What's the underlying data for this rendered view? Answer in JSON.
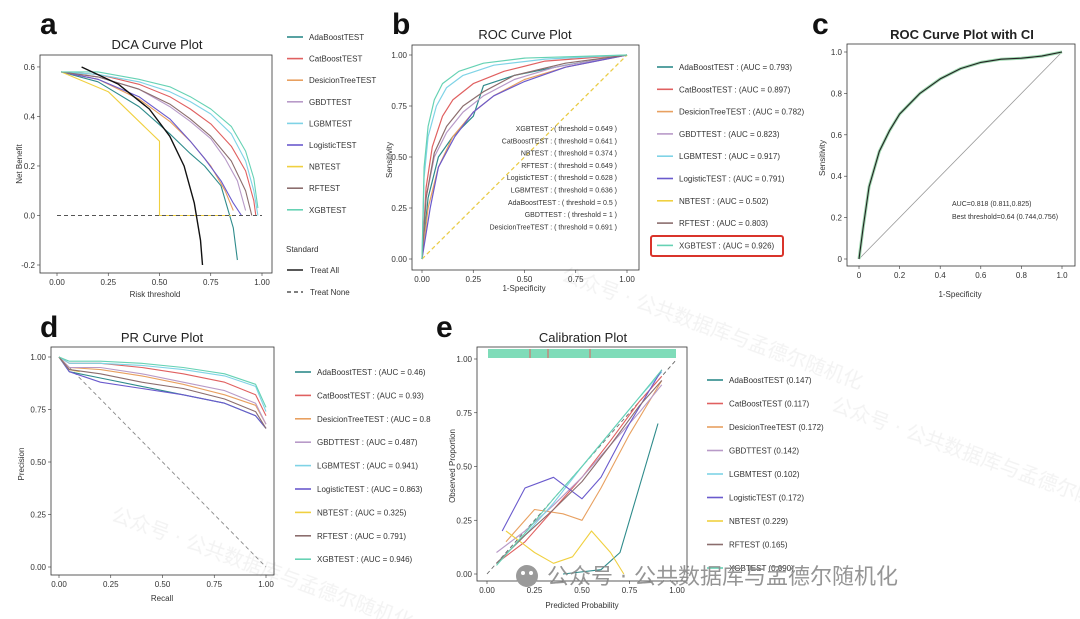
{
  "watermark": "公众号 · 公共数据库与孟德尔随机化",
  "chart_data": [
    {
      "panel": "a",
      "type": "line",
      "title": "DCA Curve Plot",
      "xlabel": "Risk threshold",
      "ylabel": "Net Benefit",
      "xlim": [
        0,
        1
      ],
      "ylim": [
        -0.2,
        0.62
      ],
      "xticks": [
        "0.00",
        "0.25",
        "0.50",
        "0.75",
        "1.00"
      ],
      "yticks": [
        "-0.2",
        "0.0",
        "0.2",
        "0.4",
        "0.6"
      ],
      "legend_title": "Standard",
      "series": [
        {
          "name": "AdaBoostTEST",
          "color": "#2e8b8b",
          "points": [
            [
              0.02,
              0.58
            ],
            [
              0.2,
              0.54
            ],
            [
              0.4,
              0.44
            ],
            [
              0.55,
              0.33
            ],
            [
              0.65,
              0.25
            ],
            [
              0.72,
              0.2
            ],
            [
              0.8,
              0.12
            ],
            [
              0.86,
              -0.05
            ],
            [
              0.88,
              -0.18
            ]
          ]
        },
        {
          "name": "CatBoostTEST",
          "color": "#e06060",
          "points": [
            [
              0.02,
              0.58
            ],
            [
              0.2,
              0.57
            ],
            [
              0.4,
              0.53
            ],
            [
              0.55,
              0.48
            ],
            [
              0.65,
              0.43
            ],
            [
              0.75,
              0.37
            ],
            [
              0.85,
              0.28
            ],
            [
              0.92,
              0.18
            ],
            [
              0.96,
              0.06
            ],
            [
              0.97,
              0.0
            ]
          ]
        },
        {
          "name": "DesicionTreeTEST",
          "color": "#e8a060",
          "points": [
            [
              0.02,
              0.58
            ],
            [
              0.2,
              0.55
            ],
            [
              0.4,
              0.47
            ],
            [
              0.55,
              0.38
            ],
            [
              0.65,
              0.3
            ],
            [
              0.75,
              0.2
            ],
            [
              0.82,
              0.1
            ],
            [
              0.86,
              0.02
            ]
          ]
        },
        {
          "name": "GBDTTEST",
          "color": "#b89ac8",
          "points": [
            [
              0.02,
              0.58
            ],
            [
              0.2,
              0.56
            ],
            [
              0.4,
              0.51
            ],
            [
              0.55,
              0.44
            ],
            [
              0.65,
              0.38
            ],
            [
              0.75,
              0.31
            ],
            [
              0.82,
              0.23
            ],
            [
              0.88,
              0.14
            ],
            [
              0.92,
              0.02
            ]
          ]
        },
        {
          "name": "LGBMTEST",
          "color": "#7fd3e6",
          "points": [
            [
              0.02,
              0.58
            ],
            [
              0.2,
              0.57
            ],
            [
              0.4,
              0.54
            ],
            [
              0.55,
              0.5
            ],
            [
              0.65,
              0.46
            ],
            [
              0.75,
              0.41
            ],
            [
              0.85,
              0.33
            ],
            [
              0.92,
              0.22
            ],
            [
              0.96,
              0.1
            ],
            [
              0.98,
              0.0
            ]
          ]
        },
        {
          "name": "LogisticTEST",
          "color": "#6a5acd",
          "points": [
            [
              0.02,
              0.58
            ],
            [
              0.2,
              0.55
            ],
            [
              0.4,
              0.48
            ],
            [
              0.55,
              0.39
            ],
            [
              0.65,
              0.3
            ],
            [
              0.72,
              0.23
            ],
            [
              0.8,
              0.14
            ],
            [
              0.86,
              0.05
            ],
            [
              0.9,
              0.0
            ]
          ]
        },
        {
          "name": "NBTEST",
          "color": "#f0d040",
          "points": [
            [
              0.02,
              0.58
            ],
            [
              0.25,
              0.5
            ],
            [
              0.5,
              0.3
            ],
            [
              0.5,
              0.0
            ],
            [
              0.85,
              0.0
            ]
          ]
        },
        {
          "name": "RFTEST",
          "color": "#8b6d6d",
          "points": [
            [
              0.02,
              0.58
            ],
            [
              0.2,
              0.56
            ],
            [
              0.4,
              0.51
            ],
            [
              0.55,
              0.45
            ],
            [
              0.65,
              0.39
            ],
            [
              0.75,
              0.32
            ],
            [
              0.85,
              0.22
            ],
            [
              0.92,
              0.1
            ],
            [
              0.95,
              0.0
            ]
          ]
        },
        {
          "name": "XGBTEST",
          "color": "#66d2b4",
          "points": [
            [
              0.02,
              0.58
            ],
            [
              0.2,
              0.58
            ],
            [
              0.4,
              0.55
            ],
            [
              0.55,
              0.52
            ],
            [
              0.65,
              0.48
            ],
            [
              0.75,
              0.43
            ],
            [
              0.85,
              0.36
            ],
            [
              0.92,
              0.26
            ],
            [
              0.96,
              0.15
            ],
            [
              0.98,
              0.03
            ]
          ]
        },
        {
          "name": "Treat All",
          "color": "#111111",
          "points": [
            [
              0.12,
              0.6
            ],
            [
              0.3,
              0.53
            ],
            [
              0.45,
              0.43
            ],
            [
              0.55,
              0.32
            ],
            [
              0.62,
              0.2
            ],
            [
              0.67,
              0.05
            ],
            [
              0.7,
              -0.1
            ],
            [
              0.71,
              -0.2
            ]
          ]
        },
        {
          "name": "Treat None",
          "color": "#555555",
          "dash": true,
          "points": [
            [
              0,
              0
            ],
            [
              1,
              0
            ]
          ]
        }
      ]
    },
    {
      "panel": "b",
      "type": "line",
      "title": "ROC Curve Plot",
      "xlabel": "1-Specificity",
      "ylabel": "Sensitivity",
      "xlim": [
        0,
        1
      ],
      "ylim": [
        0,
        1
      ],
      "xticks": [
        "0.00",
        "0.25",
        "0.50",
        "0.75",
        "1.00"
      ],
      "yticks": [
        "0.00",
        "0.25",
        "0.50",
        "0.75",
        "1.00"
      ],
      "legend": [
        {
          "name": "AdaBoostTEST : (AUC = 0.793)",
          "color": "#2e8b8b"
        },
        {
          "name": "CatBoostTEST : (AUC = 0.897)",
          "color": "#e06060"
        },
        {
          "name": "DesicionTreeTEST : (AUC = 0.782)",
          "color": "#e8a060"
        },
        {
          "name": "GBDTTEST : (AUC = 0.823)",
          "color": "#b89ac8"
        },
        {
          "name": "LGBMTEST : (AUC = 0.917)",
          "color": "#7fd3e6"
        },
        {
          "name": "LogisticTEST : (AUC = 0.791)",
          "color": "#6a5acd"
        },
        {
          "name": "NBTEST : (AUC = 0.502)",
          "color": "#f0d040"
        },
        {
          "name": "RFTEST : (AUC = 0.803)",
          "color": "#8b6d6d"
        },
        {
          "name": "XGBTEST : (AUC = 0.926)",
          "color": "#66d2b4"
        }
      ],
      "annotations": [
        "XGBTEST : ( threshold = 0.649 )",
        "CatBoostTEST : ( threshold = 0.641 )",
        "NBTEST : ( threshold = 0.374 )",
        "RFTEST : ( threshold = 0.649 )",
        "LogisticTEST : ( threshold = 0.628 )",
        "LGBMTEST : ( threshold = 0.636 )",
        "AdaBoostTEST : ( threshold = 0.5 )",
        "GBDTTEST : ( threshold = 1 )",
        "DesicionTreeTEST : ( threshold = 0.691 )"
      ],
      "highlighted": "XGBTEST : (AUC = 0.926)"
    },
    {
      "panel": "c",
      "type": "line",
      "title": "ROC Curve Plot with CI",
      "xlabel": "1-Specificity",
      "ylabel": "Sensitivity",
      "xlim": [
        0,
        1
      ],
      "ylim": [
        0,
        1
      ],
      "xticks": [
        "0",
        "0.2",
        "0.4",
        "0.6",
        "0.8",
        "1.0"
      ],
      "yticks": [
        "0",
        "0.2",
        "0.4",
        "0.6",
        "0.8",
        "1.0"
      ],
      "annotations": [
        "AUC=0.818 (0.811,0.825)",
        "Best threshold=0.64 (0.744,0.756)"
      ],
      "series": [
        {
          "name": "ROC",
          "color": "#222222",
          "points": [
            [
              0,
              0
            ],
            [
              0.02,
              0.15
            ],
            [
              0.05,
              0.35
            ],
            [
              0.1,
              0.52
            ],
            [
              0.15,
              0.62
            ],
            [
              0.2,
              0.7
            ],
            [
              0.3,
              0.8
            ],
            [
              0.4,
              0.87
            ],
            [
              0.5,
              0.92
            ],
            [
              0.6,
              0.95
            ],
            [
              0.7,
              0.965
            ],
            [
              0.8,
              0.97
            ],
            [
              0.9,
              0.98
            ],
            [
              1,
              1
            ]
          ]
        },
        {
          "name": "chance",
          "color": "#999999",
          "points": [
            [
              0,
              0
            ],
            [
              1,
              1
            ]
          ]
        }
      ]
    },
    {
      "panel": "d",
      "type": "line",
      "title": "PR Curve Plot",
      "xlabel": "Recall",
      "ylabel": "Precision",
      "xlim": [
        0,
        1
      ],
      "ylim": [
        0,
        1
      ],
      "xticks": [
        "0.00",
        "0.25",
        "0.50",
        "0.75",
        "1.00"
      ],
      "yticks": [
        "0.00",
        "0.25",
        "0.50",
        "0.75",
        "1.00"
      ],
      "legend": [
        {
          "name": "AdaBoostTEST : (AUC = 0.46)",
          "color": "#2e8b8b"
        },
        {
          "name": "CatBoostTEST : (AUC = 0.93)",
          "color": "#e06060"
        },
        {
          "name": "DesicionTreeTEST : (AUC = 0.8",
          "color": "#e8a060"
        },
        {
          "name": "GBDTTEST : (AUC = 0.487)",
          "color": "#b89ac8"
        },
        {
          "name": "LGBMTEST : (AUC = 0.941)",
          "color": "#7fd3e6"
        },
        {
          "name": "LogisticTEST : (AUC = 0.863)",
          "color": "#6a5acd"
        },
        {
          "name": "NBTEST : (AUC = 0.325)",
          "color": "#f0d040"
        },
        {
          "name": "RFTEST : (AUC = 0.791)",
          "color": "#8b6d6d"
        },
        {
          "name": "XGBTEST : (AUC = 0.946)",
          "color": "#66d2b4"
        }
      ]
    },
    {
      "panel": "e",
      "type": "line",
      "title": "Calibration Plot",
      "xlabel": "Predicted Probability",
      "ylabel": "Observed Proportion",
      "xlim": [
        0,
        1
      ],
      "ylim": [
        0,
        1
      ],
      "xticks": [
        "0.00",
        "0.25",
        "0.50",
        "0.75",
        "1.00"
      ],
      "yticks": [
        "0.00",
        "0.25",
        "0.50",
        "0.75",
        "1.00"
      ],
      "legend": [
        {
          "name": "AdaBoostTEST (0.147)",
          "color": "#2e8b8b"
        },
        {
          "name": "CatBoostTEST (0.117)",
          "color": "#e06060"
        },
        {
          "name": "DesicionTreeTEST (0.172)",
          "color": "#e8a060"
        },
        {
          "name": "GBDTTEST (0.142)",
          "color": "#b89ac8"
        },
        {
          "name": "LGBMTEST (0.102)",
          "color": "#7fd3e6"
        },
        {
          "name": "LogisticTEST (0.172)",
          "color": "#6a5acd"
        },
        {
          "name": "NBTEST (0.229)",
          "color": "#f0d040"
        },
        {
          "name": "RFTEST (0.165)",
          "color": "#8b6d6d"
        },
        {
          "name": "XGBTEST (0.090)",
          "color": "#66d2b4"
        }
      ]
    }
  ]
}
